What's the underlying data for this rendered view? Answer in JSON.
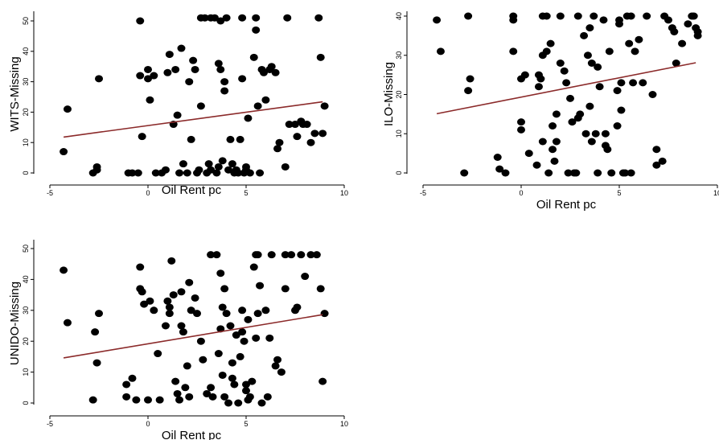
{
  "chart_data": [
    {
      "type": "scatter",
      "title": "",
      "xlabel": "Oil Rent pc",
      "ylabel": "WITS-Missing",
      "xlim": [
        -5,
        10
      ],
      "ylim": [
        0,
        51
      ],
      "xticks": [
        "-5",
        "0",
        "5",
        "10"
      ],
      "yticks": [
        "0",
        "10",
        "20",
        "30",
        "40",
        "50"
      ],
      "grid": false,
      "marker_color": "#000000",
      "fit_color": "#8b2a2a",
      "fit_line": {
        "x": [
          -4.3,
          8.9
        ],
        "y": [
          11.8,
          23.4
        ]
      },
      "points": [
        [
          -4.3,
          7
        ],
        [
          -4.1,
          21
        ],
        [
          -2.8,
          0
        ],
        [
          -2.6,
          2
        ],
        [
          -2.5,
          31
        ],
        [
          -2.6,
          1
        ],
        [
          -1,
          0
        ],
        [
          -0.8,
          0
        ],
        [
          -0.5,
          0
        ],
        [
          -0.4,
          50
        ],
        [
          -0.4,
          32
        ],
        [
          -0.3,
          12
        ],
        [
          0,
          34
        ],
        [
          0,
          31
        ],
        [
          0.1,
          24
        ],
        [
          0.3,
          32
        ],
        [
          0.4,
          0
        ],
        [
          0.7,
          0
        ],
        [
          0.9,
          1
        ],
        [
          1,
          33
        ],
        [
          1.1,
          39
        ],
        [
          1.3,
          16
        ],
        [
          1.4,
          34
        ],
        [
          1.5,
          19
        ],
        [
          1.6,
          0
        ],
        [
          1.7,
          41
        ],
        [
          1.8,
          3
        ],
        [
          2,
          0
        ],
        [
          2.1,
          30
        ],
        [
          2.2,
          11
        ],
        [
          2.3,
          37
        ],
        [
          2.4,
          34
        ],
        [
          2.5,
          0
        ],
        [
          2.6,
          1
        ],
        [
          2.7,
          22
        ],
        [
          2.7,
          51
        ],
        [
          2.9,
          51
        ],
        [
          3,
          0
        ],
        [
          3.1,
          3
        ],
        [
          3.2,
          51
        ],
        [
          3.2,
          1
        ],
        [
          3.4,
          51
        ],
        [
          3.5,
          0
        ],
        [
          3.6,
          36
        ],
        [
          3.6,
          2
        ],
        [
          3.7,
          34
        ],
        [
          3.7,
          50
        ],
        [
          3.8,
          4
        ],
        [
          3.9,
          27
        ],
        [
          3.9,
          30
        ],
        [
          4,
          51
        ],
        [
          4.1,
          1
        ],
        [
          4.2,
          11
        ],
        [
          4.3,
          3
        ],
        [
          4.4,
          0
        ],
        [
          4.5,
          1
        ],
        [
          4.6,
          0
        ],
        [
          4.7,
          11
        ],
        [
          4.8,
          31
        ],
        [
          4.8,
          51
        ],
        [
          4.9,
          0
        ],
        [
          5,
          2
        ],
        [
          5,
          1
        ],
        [
          5.1,
          18
        ],
        [
          5.2,
          0
        ],
        [
          5.4,
          38
        ],
        [
          5.5,
          51
        ],
        [
          5.5,
          47
        ],
        [
          5.6,
          22
        ],
        [
          5.7,
          0
        ],
        [
          5.8,
          34
        ],
        [
          5.9,
          33
        ],
        [
          6,
          24
        ],
        [
          6.2,
          34
        ],
        [
          6.3,
          35
        ],
        [
          6.5,
          33
        ],
        [
          6.6,
          8
        ],
        [
          6.7,
          10
        ],
        [
          7,
          2
        ],
        [
          7.1,
          51
        ],
        [
          7.2,
          16
        ],
        [
          7.5,
          16
        ],
        [
          7.6,
          12
        ],
        [
          7.8,
          17
        ],
        [
          7.9,
          16
        ],
        [
          8.1,
          16
        ],
        [
          8.3,
          10
        ],
        [
          8.5,
          13
        ],
        [
          8.7,
          51
        ],
        [
          8.8,
          38
        ],
        [
          8.9,
          13
        ],
        [
          9,
          22
        ]
      ]
    },
    {
      "type": "scatter",
      "title": "",
      "xlabel": "Oil Rent pc",
      "ylabel": "ILO-Missing",
      "xlim": [
        -5,
        10
      ],
      "ylim": [
        0,
        40
      ],
      "xticks": [
        "-5",
        "0",
        "5",
        "10"
      ],
      "yticks": [
        "0",
        "10",
        "20",
        "30",
        "40"
      ],
      "grid": false,
      "marker_color": "#000000",
      "fit_color": "#8b2a2a",
      "fit_line": {
        "x": [
          -4.3,
          8.9
        ],
        "y": [
          15.1,
          28.1
        ]
      },
      "points": [
        [
          -4.3,
          39
        ],
        [
          -4.1,
          31
        ],
        [
          -2.9,
          0
        ],
        [
          -2.7,
          40
        ],
        [
          -2.6,
          24
        ],
        [
          -2.7,
          21
        ],
        [
          -1.2,
          4
        ],
        [
          -1.1,
          1
        ],
        [
          -0.8,
          0
        ],
        [
          -0.4,
          40
        ],
        [
          -0.4,
          39
        ],
        [
          -0.4,
          31
        ],
        [
          0,
          24
        ],
        [
          0,
          13
        ],
        [
          0,
          11
        ],
        [
          0.2,
          25
        ],
        [
          0.4,
          5
        ],
        [
          0.8,
          2
        ],
        [
          0.9,
          22
        ],
        [
          0.9,
          25
        ],
        [
          1,
          24
        ],
        [
          1.1,
          40
        ],
        [
          1.1,
          30
        ],
        [
          1.1,
          8
        ],
        [
          1.3,
          40
        ],
        [
          1.3,
          31
        ],
        [
          1.4,
          0
        ],
        [
          1.5,
          33
        ],
        [
          1.6,
          12
        ],
        [
          1.6,
          6
        ],
        [
          1.8,
          15
        ],
        [
          1.8,
          8
        ],
        [
          1.7,
          3
        ],
        [
          2,
          40
        ],
        [
          2,
          28
        ],
        [
          2.2,
          26
        ],
        [
          2.3,
          23
        ],
        [
          2.4,
          0
        ],
        [
          2.5,
          19
        ],
        [
          2.6,
          13
        ],
        [
          2.7,
          0
        ],
        [
          2.8,
          0
        ],
        [
          2.9,
          40
        ],
        [
          2.9,
          14
        ],
        [
          3,
          15
        ],
        [
          3.2,
          35
        ],
        [
          3.3,
          10
        ],
        [
          3.4,
          30
        ],
        [
          3.5,
          37
        ],
        [
          3.5,
          17
        ],
        [
          3.6,
          28
        ],
        [
          3.6,
          8
        ],
        [
          3.7,
          40
        ],
        [
          3.8,
          10
        ],
        [
          3.9,
          0
        ],
        [
          3.9,
          27
        ],
        [
          4,
          22
        ],
        [
          4.2,
          39
        ],
        [
          4.3,
          10
        ],
        [
          4.3,
          7
        ],
        [
          4.4,
          6
        ],
        [
          4.5,
          31
        ],
        [
          4.6,
          0
        ],
        [
          4.9,
          21
        ],
        [
          4.9,
          12
        ],
        [
          5,
          39
        ],
        [
          5,
          38
        ],
        [
          5.1,
          16
        ],
        [
          5.1,
          23
        ],
        [
          5.2,
          0
        ],
        [
          5.3,
          0
        ],
        [
          5.4,
          40
        ],
        [
          5.5,
          33
        ],
        [
          5.6,
          40
        ],
        [
          5.6,
          0
        ],
        [
          5.7,
          23
        ],
        [
          5.8,
          31
        ],
        [
          6,
          34
        ],
        [
          6.2,
          23
        ],
        [
          6.4,
          40
        ],
        [
          6.7,
          20
        ],
        [
          6.9,
          2
        ],
        [
          6.9,
          6
        ],
        [
          7.2,
          3
        ],
        [
          7.3,
          40
        ],
        [
          7.5,
          39
        ],
        [
          7.7,
          37
        ],
        [
          7.8,
          36
        ],
        [
          7.9,
          28
        ],
        [
          8.2,
          33
        ],
        [
          8.5,
          38
        ],
        [
          8.7,
          40
        ],
        [
          8.8,
          40
        ],
        [
          8.9,
          37
        ],
        [
          9,
          36
        ],
        [
          9,
          35
        ]
      ]
    },
    {
      "type": "scatter",
      "title": "",
      "xlabel": "Oil Rent pc",
      "ylabel": "UNIDO-Missing",
      "xlim": [
        -5,
        10
      ],
      "ylim": [
        0,
        48
      ],
      "xticks": [
        "-5",
        "0",
        "5",
        "10"
      ],
      "yticks": [
        "0",
        "10",
        "20",
        "30",
        "40",
        "50"
      ],
      "grid": false,
      "marker_color": "#000000",
      "fit_color": "#8b2a2a",
      "fit_line": {
        "x": [
          -4.3,
          8.9
        ],
        "y": [
          14.6,
          28.6
        ]
      },
      "points": [
        [
          -4.3,
          43
        ],
        [
          -4.1,
          26
        ],
        [
          -2.8,
          1
        ],
        [
          -2.7,
          23
        ],
        [
          -2.6,
          13
        ],
        [
          -2.5,
          29
        ],
        [
          -1.1,
          6
        ],
        [
          -1.1,
          2
        ],
        [
          -0.8,
          8
        ],
        [
          -0.6,
          1
        ],
        [
          -0.4,
          44
        ],
        [
          -0.4,
          37
        ],
        [
          -0.3,
          36
        ],
        [
          -0.2,
          32
        ],
        [
          0,
          1
        ],
        [
          0.1,
          33
        ],
        [
          0.3,
          30
        ],
        [
          0.5,
          16
        ],
        [
          0.6,
          1
        ],
        [
          0.9,
          25
        ],
        [
          1,
          33
        ],
        [
          1.1,
          31
        ],
        [
          1.1,
          29
        ],
        [
          1.2,
          46
        ],
        [
          1.3,
          35
        ],
        [
          1.4,
          7
        ],
        [
          1.5,
          3
        ],
        [
          1.6,
          1
        ],
        [
          1.7,
          36
        ],
        [
          1.7,
          25
        ],
        [
          1.8,
          23
        ],
        [
          1.9,
          5
        ],
        [
          2,
          12
        ],
        [
          2.1,
          39
        ],
        [
          2.1,
          2
        ],
        [
          2.2,
          30
        ],
        [
          2.4,
          34
        ],
        [
          2.5,
          29
        ],
        [
          2.7,
          20
        ],
        [
          2.8,
          14
        ],
        [
          3,
          3
        ],
        [
          3.2,
          48
        ],
        [
          3.2,
          5
        ],
        [
          3.3,
          2
        ],
        [
          3.5,
          48
        ],
        [
          3.6,
          16
        ],
        [
          3.7,
          42
        ],
        [
          3.7,
          24
        ],
        [
          3.8,
          31
        ],
        [
          3.8,
          9
        ],
        [
          3.9,
          37
        ],
        [
          3.9,
          2
        ],
        [
          4,
          29
        ],
        [
          4.1,
          0
        ],
        [
          4.2,
          25
        ],
        [
          4.3,
          13
        ],
        [
          4.3,
          8
        ],
        [
          4.4,
          6
        ],
        [
          4.5,
          22
        ],
        [
          4.6,
          0
        ],
        [
          4.7,
          15
        ],
        [
          4.8,
          23
        ],
        [
          4.8,
          30
        ],
        [
          4.9,
          20
        ],
        [
          5,
          6
        ],
        [
          5,
          4
        ],
        [
          5.1,
          27
        ],
        [
          5.1,
          1
        ],
        [
          5.2,
          2
        ],
        [
          5.3,
          7
        ],
        [
          5.4,
          44
        ],
        [
          5.5,
          48
        ],
        [
          5.5,
          21
        ],
        [
          5.6,
          48
        ],
        [
          5.6,
          29
        ],
        [
          5.7,
          38
        ],
        [
          5.8,
          0
        ],
        [
          6,
          30
        ],
        [
          6.1,
          2
        ],
        [
          6.2,
          21
        ],
        [
          6.3,
          48
        ],
        [
          6.5,
          12
        ],
        [
          6.6,
          14
        ],
        [
          6.8,
          10
        ],
        [
          7,
          48
        ],
        [
          7,
          37
        ],
        [
          7.3,
          48
        ],
        [
          7.5,
          30
        ],
        [
          7.6,
          31
        ],
        [
          7.8,
          48
        ],
        [
          8,
          41
        ],
        [
          8.3,
          48
        ],
        [
          8.6,
          48
        ],
        [
          8.8,
          37
        ],
        [
          8.9,
          7
        ],
        [
          9,
          29
        ]
      ]
    }
  ]
}
